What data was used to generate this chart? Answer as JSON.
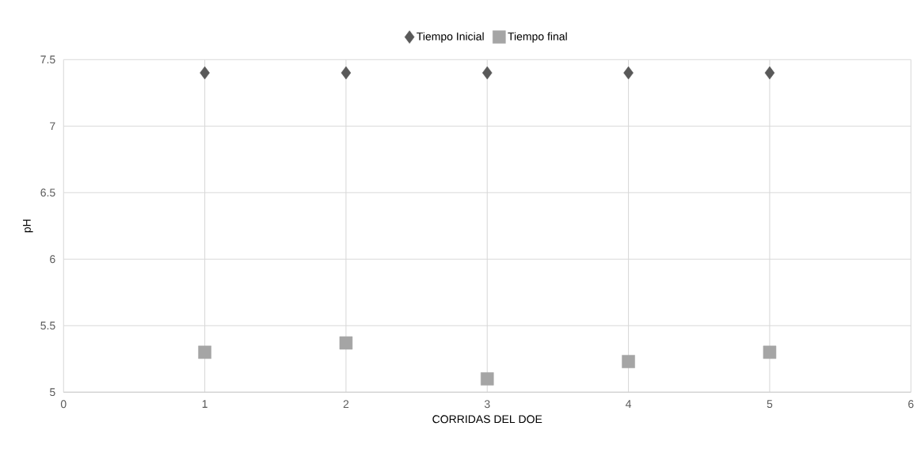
{
  "chart_data": {
    "type": "scatter",
    "xlabel": "CORRIDAS DEL DOE",
    "ylabel": "pH",
    "xlim": [
      0,
      6
    ],
    "xticks": [
      0,
      1,
      2,
      3,
      4,
      5,
      6
    ],
    "ylim": [
      5,
      7.5
    ],
    "yticks": [
      5,
      5.5,
      6,
      6.5,
      7,
      7.5
    ],
    "grid": true,
    "legend": "top",
    "series": [
      {
        "name": "Tiempo Inicial",
        "color": "#595959",
        "marker": "diamond",
        "x": [
          1,
          2,
          3,
          4,
          5
        ],
        "values": [
          7.4,
          7.4,
          7.4,
          7.4,
          7.4
        ]
      },
      {
        "name": "Tiempo final",
        "color": "#a5a5a5",
        "marker": "square",
        "x": [
          1,
          2,
          3,
          4,
          5
        ],
        "values": [
          5.3,
          5.37,
          5.1,
          5.23,
          5.3
        ]
      }
    ]
  }
}
